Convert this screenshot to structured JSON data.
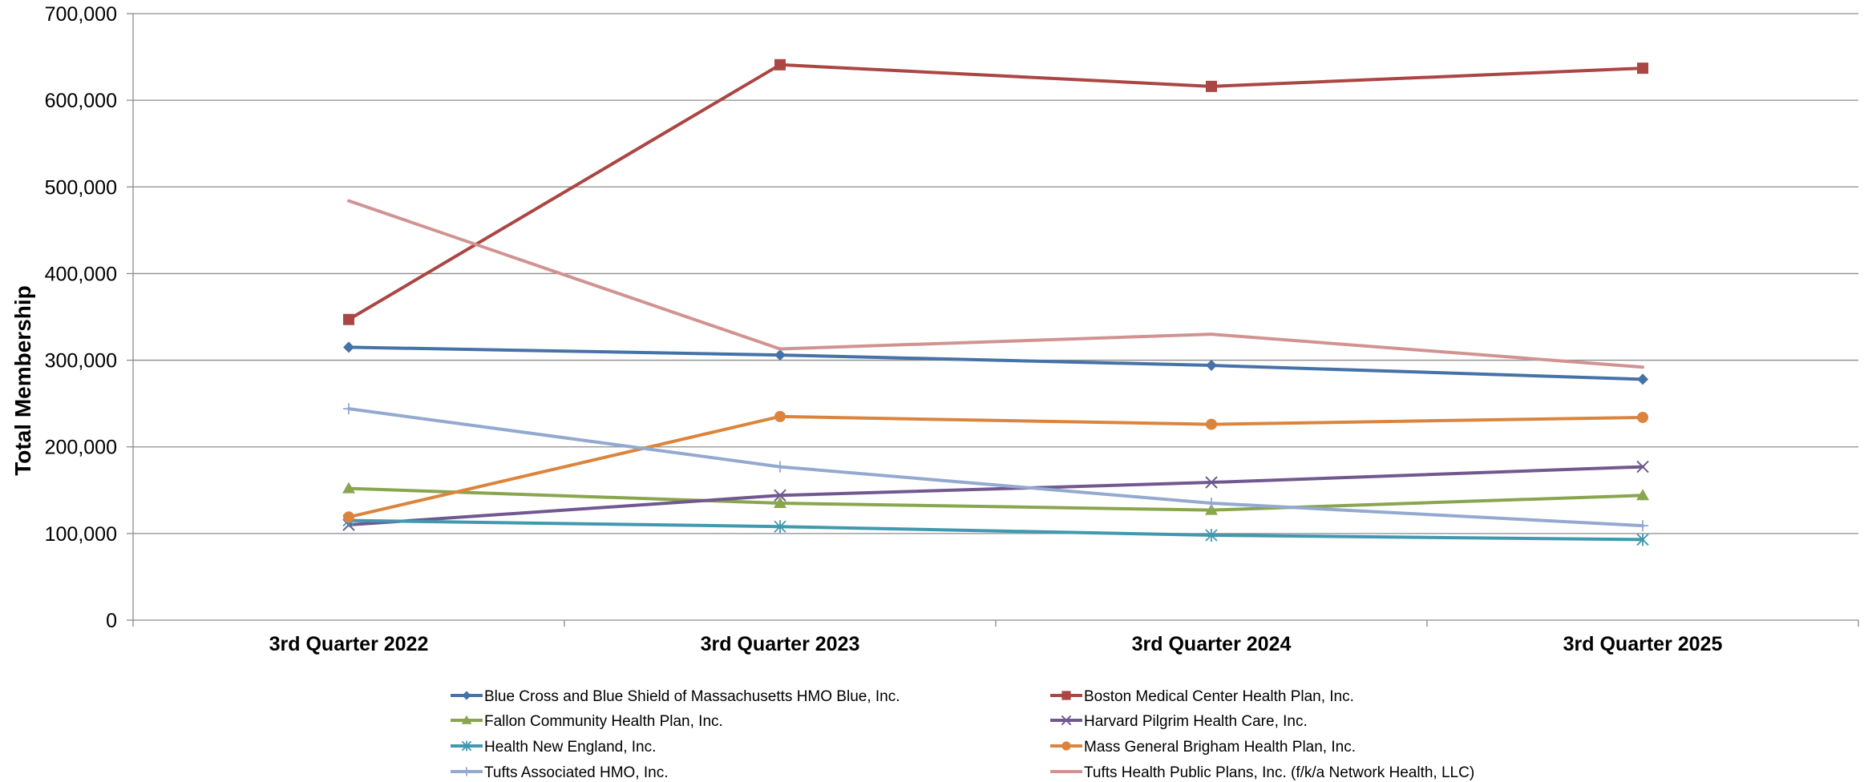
{
  "chart_data": {
    "type": "line",
    "title": "",
    "xlabel": "",
    "ylabel": "Total Membership",
    "ylim": [
      0,
      700000
    ],
    "yticks": [
      0,
      100000,
      200000,
      300000,
      400000,
      500000,
      600000,
      700000
    ],
    "ytick_labels": [
      "0",
      "100,000",
      "200,000",
      "300,000",
      "400,000",
      "500,000",
      "600,000",
      "700,000"
    ],
    "categories": [
      "3rd Quarter 2022",
      "3rd Quarter 2023",
      "3rd Quarter 2024",
      "3rd Quarter 2025"
    ],
    "grid": true,
    "legend_position": "bottom",
    "series": [
      {
        "name": "Blue Cross and Blue Shield of Massachusetts HMO Blue, Inc.",
        "color": "#4572A7",
        "marker": "diamond",
        "values": [
          315000,
          306000,
          294000,
          278000
        ]
      },
      {
        "name": "Boston Medical Center Health Plan, Inc.",
        "color": "#AA4643",
        "marker": "square",
        "values": [
          347000,
          641000,
          616000,
          637000
        ]
      },
      {
        "name": "Fallon Community Health Plan, Inc.",
        "color": "#89A54E",
        "marker": "triangle",
        "values": [
          152000,
          135000,
          127000,
          144000
        ]
      },
      {
        "name": "Harvard Pilgrim Health Care, Inc.",
        "color": "#71588F",
        "marker": "x",
        "values": [
          110000,
          144000,
          159000,
          177000
        ]
      },
      {
        "name": "Health New England, Inc.",
        "color": "#4198AF",
        "marker": "star",
        "values": [
          115000,
          108000,
          98000,
          93000
        ]
      },
      {
        "name": "Mass General Brigham Health Plan, Inc.",
        "color": "#DB843D",
        "marker": "circle",
        "values": [
          119000,
          235000,
          226000,
          234000
        ]
      },
      {
        "name": "Tufts Associated HMO, Inc.",
        "color": "#93A9CF",
        "marker": "plus",
        "values": [
          244000,
          177000,
          135000,
          109000
        ]
      },
      {
        "name": "Tufts Health Public Plans, Inc. (f/k/a Network Health, LLC)",
        "color": "#D19392",
        "marker": "none",
        "values": [
          484000,
          313000,
          330000,
          292000
        ]
      }
    ]
  }
}
